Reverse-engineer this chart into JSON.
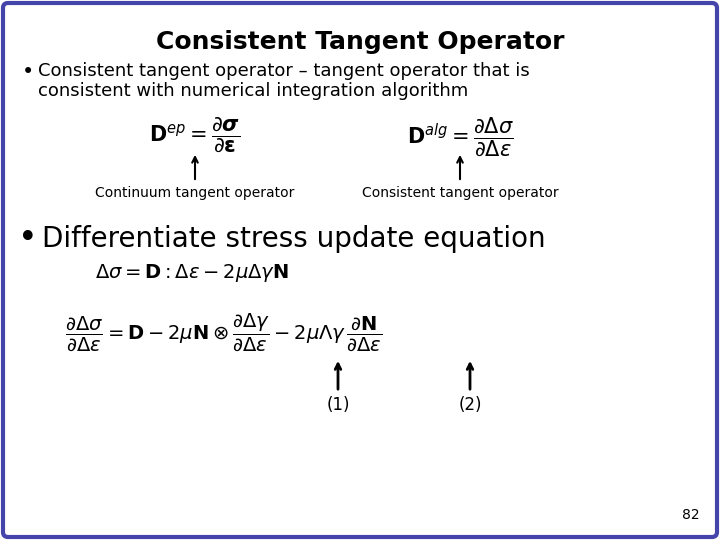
{
  "title": "Consistent Tangent Operator",
  "background_color": "#ffffff",
  "border_color": "#4444aa",
  "border_linewidth": 3,
  "page_number": "82",
  "bullet1_line1": "Consistent tangent operator – tangent operator that is",
  "bullet1_line2": "consistent with numerical integration algorithm",
  "bullet2": "Differentiate stress update equation",
  "label_left": "Continuum tangent operator",
  "label_right": "Consistent tangent operator",
  "title_fontsize": 18,
  "body_fontsize": 13,
  "eq_fontsize": 13,
  "label_fontsize": 10,
  "bullet2_fontsize": 20
}
